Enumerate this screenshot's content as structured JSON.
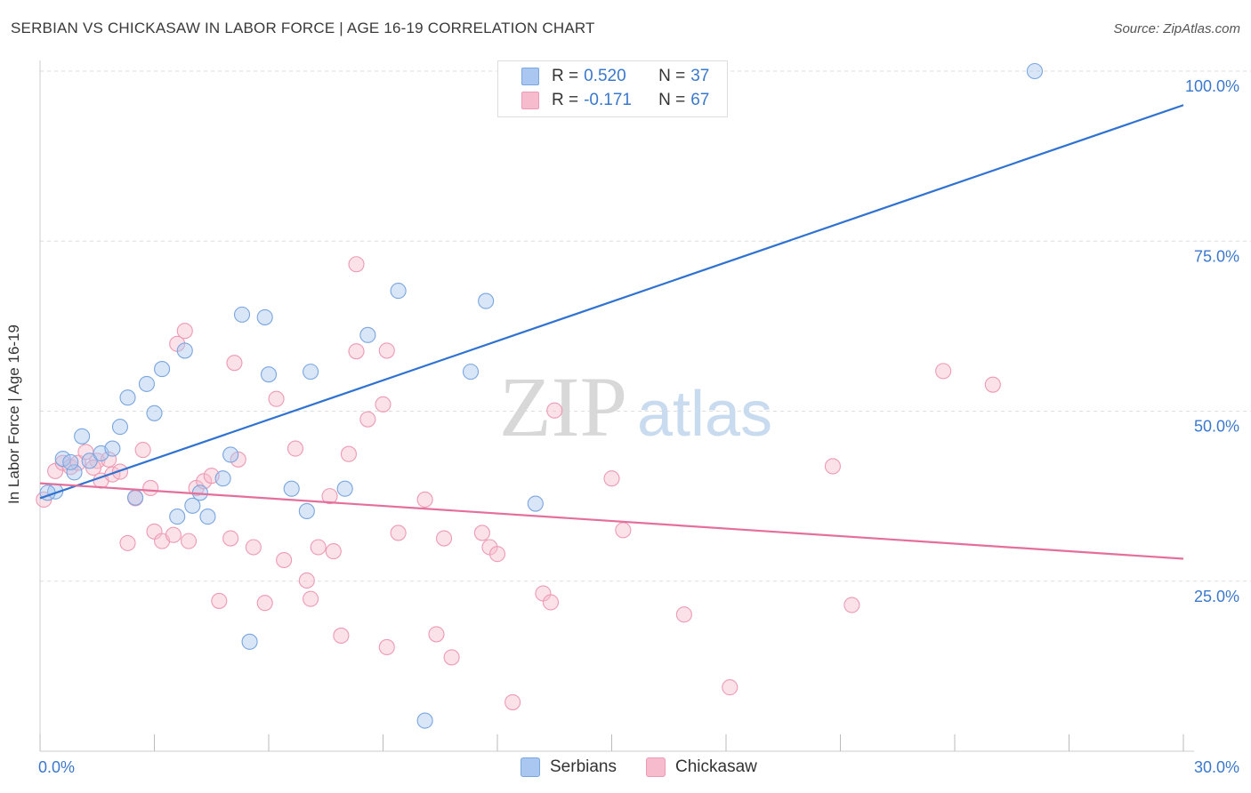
{
  "title": "SERBIAN VS CHICKASAW IN LABOR FORCE | AGE 16-19 CORRELATION CHART",
  "source": "Source: ZipAtlas.com",
  "watermark": {
    "zip": "ZIP",
    "atlas": "atlas"
  },
  "legend": {
    "serbians": {
      "r_label": "R =",
      "r_value": "0.520",
      "n_label": "N =",
      "n_value": "37"
    },
    "chickasaw": {
      "r_label": "R =",
      "r_value": "-0.171",
      "n_label": "N =",
      "n_value": "67"
    }
  },
  "bottom_legend": {
    "serbians": "Serbians",
    "chickasaw": "Chickasaw"
  },
  "colors": {
    "serbians_fill": "#a9c7f0",
    "serbians_stroke": "#7aa6e0",
    "serbians_line": "#2f72d0",
    "chickasaw_fill": "#f6bccd",
    "chickasaw_stroke": "#ee9ab5",
    "chickasaw_line": "#e46f9b",
    "tick_label": "#3b78cc",
    "grid": "#dddddd",
    "watermark": "#d8d8d8"
  },
  "chart_data": {
    "type": "scatter",
    "xlabel": "",
    "ylabel": "In Labor Force | Age 16-19",
    "xlim": [
      0,
      30
    ],
    "ylim": [
      0,
      102
    ],
    "x_tick_labels": [
      {
        "value": 0,
        "label": "0.0%"
      },
      {
        "value": 30,
        "label": "30.0%"
      }
    ],
    "y_tick_labels": [
      {
        "value": 100,
        "label": "100.0%"
      },
      {
        "value": 75,
        "label": "75.0%"
      },
      {
        "value": 50,
        "label": "50.0%"
      },
      {
        "value": 25,
        "label": "25.0%"
      }
    ],
    "x_minor_ticks": [
      0,
      3,
      6,
      9,
      12,
      15,
      18,
      21,
      24,
      27,
      30
    ],
    "grid": true,
    "series": [
      {
        "name": "Serbians",
        "trend": {
          "x": [
            0,
            30
          ],
          "y": [
            37.2,
            95.0
          ]
        },
        "points": [
          [
            0.4,
            38.2
          ],
          [
            0.6,
            43.0
          ],
          [
            0.9,
            41.0
          ],
          [
            1.1,
            46.3
          ],
          [
            1.3,
            42.7
          ],
          [
            1.6,
            43.8
          ],
          [
            1.9,
            44.5
          ],
          [
            2.1,
            47.7
          ],
          [
            2.3,
            52.0
          ],
          [
            2.5,
            37.3
          ],
          [
            2.8,
            54.0
          ],
          [
            3.0,
            49.7
          ],
          [
            3.2,
            56.2
          ],
          [
            3.6,
            34.5
          ],
          [
            3.8,
            58.9
          ],
          [
            4.0,
            36.1
          ],
          [
            4.2,
            38.0
          ],
          [
            4.4,
            34.5
          ],
          [
            4.8,
            40.1
          ],
          [
            5.0,
            43.6
          ],
          [
            5.3,
            64.2
          ],
          [
            5.5,
            16.1
          ],
          [
            5.9,
            63.8
          ],
          [
            6.0,
            55.4
          ],
          [
            6.6,
            38.6
          ],
          [
            7.0,
            35.3
          ],
          [
            7.1,
            55.8
          ],
          [
            8.0,
            38.6
          ],
          [
            8.6,
            61.2
          ],
          [
            9.4,
            67.7
          ],
          [
            10.1,
            4.5
          ],
          [
            11.3,
            55.8
          ],
          [
            11.7,
            66.2
          ],
          [
            13.0,
            36.4
          ],
          [
            26.1,
            100.0
          ],
          [
            0.2,
            38.0
          ],
          [
            0.8,
            42.5
          ]
        ]
      },
      {
        "name": "Chickasaw",
        "trend": {
          "x": [
            0,
            30
          ],
          "y": [
            39.4,
            28.3
          ]
        },
        "points": [
          [
            0.1,
            37.0
          ],
          [
            0.4,
            41.2
          ],
          [
            0.6,
            42.4
          ],
          [
            0.8,
            41.8
          ],
          [
            1.0,
            42.4
          ],
          [
            1.2,
            44.0
          ],
          [
            1.5,
            42.7
          ],
          [
            1.6,
            39.8
          ],
          [
            1.8,
            42.9
          ],
          [
            1.9,
            40.7
          ],
          [
            2.1,
            41.1
          ],
          [
            2.3,
            30.6
          ],
          [
            2.5,
            37.2
          ],
          [
            2.7,
            44.3
          ],
          [
            2.9,
            38.7
          ],
          [
            3.0,
            32.3
          ],
          [
            3.2,
            30.9
          ],
          [
            3.5,
            31.8
          ],
          [
            3.6,
            59.9
          ],
          [
            3.8,
            61.8
          ],
          [
            3.9,
            30.9
          ],
          [
            4.1,
            38.7
          ],
          [
            4.3,
            39.7
          ],
          [
            4.5,
            40.5
          ],
          [
            4.7,
            22.1
          ],
          [
            5.0,
            31.3
          ],
          [
            5.1,
            57.1
          ],
          [
            5.2,
            42.9
          ],
          [
            5.6,
            30.0
          ],
          [
            5.9,
            21.8
          ],
          [
            6.2,
            51.8
          ],
          [
            6.4,
            28.1
          ],
          [
            6.7,
            44.5
          ],
          [
            7.0,
            25.1
          ],
          [
            7.1,
            22.4
          ],
          [
            7.3,
            30.0
          ],
          [
            7.6,
            37.5
          ],
          [
            7.7,
            29.4
          ],
          [
            7.9,
            17.0
          ],
          [
            8.1,
            43.7
          ],
          [
            8.3,
            71.6
          ],
          [
            8.3,
            58.8
          ],
          [
            8.6,
            48.8
          ],
          [
            9.0,
            51.0
          ],
          [
            9.1,
            58.9
          ],
          [
            9.1,
            15.3
          ],
          [
            9.4,
            32.1
          ],
          [
            10.1,
            37.0
          ],
          [
            10.4,
            17.2
          ],
          [
            10.6,
            31.3
          ],
          [
            10.8,
            13.8
          ],
          [
            11.6,
            32.1
          ],
          [
            11.8,
            30.0
          ],
          [
            12.0,
            29.0
          ],
          [
            12.4,
            7.2
          ],
          [
            13.2,
            23.2
          ],
          [
            13.4,
            21.9
          ],
          [
            13.5,
            50.1
          ],
          [
            15.0,
            40.1
          ],
          [
            15.3,
            32.5
          ],
          [
            16.9,
            20.1
          ],
          [
            18.1,
            9.4
          ],
          [
            20.8,
            41.9
          ],
          [
            21.3,
            21.5
          ],
          [
            23.7,
            55.9
          ],
          [
            25.0,
            53.9
          ],
          [
            1.4,
            41.7
          ]
        ]
      }
    ]
  }
}
